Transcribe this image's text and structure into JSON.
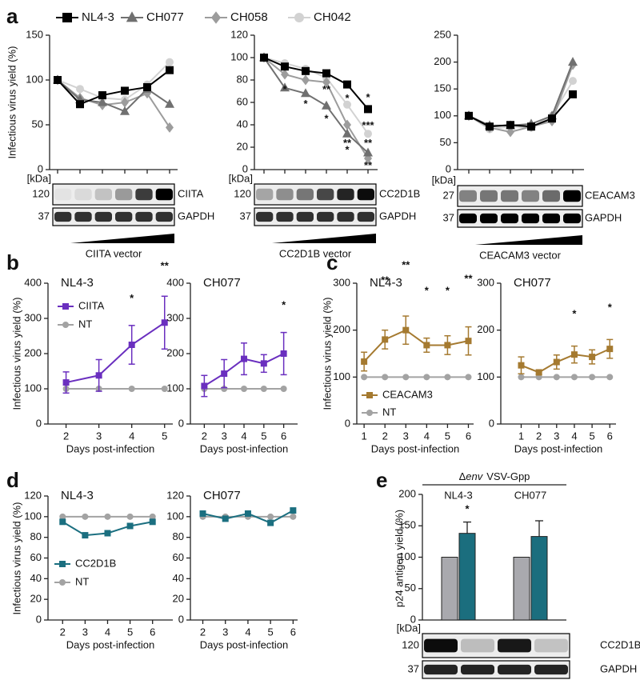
{
  "panels": [
    "a",
    "b",
    "c",
    "d",
    "e"
  ],
  "chart_data": [
    {
      "type": "line",
      "y_label": "Infectious virus yield (%)",
      "categories": [
        null,
        null,
        null,
        null,
        null,
        null
      ],
      "series": [
        {
          "name": "NL4-3",
          "color": "#000000",
          "marker": "square",
          "values": [
            100,
            73,
            83,
            88,
            92,
            111
          ]
        },
        {
          "name": "CH077",
          "color": "#707070",
          "marker": "triangle",
          "values": [
            100,
            78,
            75,
            65,
            90,
            73
          ]
        },
        {
          "name": "CH058",
          "color": "#9c9c9c",
          "marker": "diamond",
          "values": [
            100,
            80,
            72,
            75,
            85,
            47
          ]
        },
        {
          "name": "CH042",
          "color": "#d2d2d2",
          "marker": "circle",
          "values": [
            100,
            90,
            80,
            78,
            95,
            120
          ]
        }
      ],
      "ylim": [
        0,
        150
      ],
      "yticks": [
        0,
        50,
        100,
        150
      ],
      "legend": "top",
      "blot": {
        "unit": "[kDa]",
        "rows": [
          {
            "size": 120,
            "label": "CIITA"
          },
          {
            "size": 37,
            "label": "GAPDH"
          }
        ],
        "vector": "CIITA vector"
      }
    },
    {
      "type": "line",
      "categories": [
        null,
        null,
        null,
        null,
        null,
        null
      ],
      "series": [
        {
          "color": "#000000",
          "marker": "square",
          "values": [
            100,
            92,
            88,
            86,
            76,
            54
          ]
        },
        {
          "color": "#707070",
          "marker": "triangle",
          "values": [
            100,
            73,
            68,
            57,
            32,
            15
          ]
        },
        {
          "color": "#9c9c9c",
          "marker": "diamond",
          "values": [
            100,
            85,
            80,
            78,
            40,
            10
          ]
        },
        {
          "color": "#d2d2d2",
          "marker": "circle",
          "values": [
            100,
            95,
            90,
            82,
            58,
            32
          ]
        }
      ],
      "ylim": [
        0,
        120
      ],
      "yticks": [
        0,
        20,
        40,
        60,
        80,
        100,
        120
      ],
      "annotations": [
        {
          "text": "*",
          "x": 1,
          "y": 71
        },
        {
          "text": "*",
          "x": 2,
          "y": 58
        },
        {
          "text": "**",
          "x": 3,
          "y": 71
        },
        {
          "text": "*",
          "x": 3,
          "y": 45
        },
        {
          "text": "*",
          "x": 4,
          "y": 63
        },
        {
          "text": "**",
          "x": 4,
          "y": 23
        },
        {
          "text": "*",
          "x": 4,
          "y": 17
        },
        {
          "text": "*",
          "x": 5,
          "y": 64
        },
        {
          "text": "***",
          "x": 5,
          "y": 39
        },
        {
          "text": "**",
          "x": 5,
          "y": 23
        },
        {
          "text": "**",
          "x": 5,
          "y": 3
        }
      ],
      "blot": {
        "unit": "[kDa]",
        "rows": [
          {
            "size": 120,
            "label": "CC2D1B"
          },
          {
            "size": 37,
            "label": "GAPDH"
          }
        ],
        "vector": "CC2D1B vector"
      }
    },
    {
      "type": "line",
      "categories": [
        null,
        null,
        null,
        null,
        null,
        null
      ],
      "series": [
        {
          "color": "#000000",
          "marker": "square",
          "values": [
            100,
            80,
            83,
            80,
            95,
            140
          ]
        },
        {
          "color": "#707070",
          "marker": "triangle",
          "values": [
            100,
            82,
            82,
            85,
            100,
            200
          ]
        },
        {
          "color": "#9c9c9c",
          "marker": "diamond",
          "values": [
            100,
            78,
            70,
            80,
            90,
            195
          ]
        },
        {
          "color": "#d2d2d2",
          "marker": "circle",
          "values": [
            100,
            75,
            80,
            78,
            100,
            165
          ]
        }
      ],
      "ylim": [
        0,
        250
      ],
      "yticks": [
        0,
        50,
        100,
        150,
        200,
        250
      ],
      "blot": {
        "unit": "[kDa]",
        "rows": [
          {
            "size": 27,
            "label": "CEACAM3"
          },
          {
            "size": 37,
            "label": "GAPDH"
          }
        ],
        "vector": "CEACAM3 vector"
      }
    },
    {
      "type": "line",
      "title": "NL4-3",
      "y_label": "Infectious virus yield (%)",
      "x_label": "Days post-infection",
      "x": [
        2,
        3,
        4,
        5
      ],
      "xlim": [
        1.45,
        5.25
      ],
      "ylim": [
        0,
        400
      ],
      "yticks": [
        0,
        100,
        200,
        300,
        400
      ],
      "series": [
        {
          "name": "CIITA",
          "color": "#6a2fbf",
          "marker": "square",
          "values": [
            118,
            138,
            225,
            288
          ],
          "errors": [
            30,
            45,
            55,
            75
          ]
        },
        {
          "name": "NT",
          "color": "#a3a3a3",
          "marker": "circle",
          "values": [
            100,
            100,
            100,
            100
          ]
        }
      ],
      "legend": "upper left",
      "annotations": [
        {
          "text": "*",
          "x": 4,
          "y": 355
        },
        {
          "text": "**",
          "x": 5,
          "y": 448
        }
      ]
    },
    {
      "type": "line",
      "title": "CH077",
      "x_label": "Days post-infection",
      "x": [
        2,
        3,
        4,
        5,
        6
      ],
      "xlim": [
        1.3,
        6.7
      ],
      "ylim": [
        0,
        400
      ],
      "yticks": [
        0,
        100,
        200,
        300,
        400
      ],
      "series": [
        {
          "color": "#6a2fbf",
          "marker": "square",
          "values": [
            108,
            143,
            185,
            172,
            200
          ],
          "errors": [
            30,
            40,
            45,
            25,
            60
          ]
        },
        {
          "color": "#a3a3a3",
          "marker": "circle",
          "values": [
            100,
            100,
            100,
            100,
            100
          ]
        }
      ],
      "annotations": [
        {
          "text": "*",
          "x": 6,
          "y": 336
        }
      ]
    },
    {
      "type": "line",
      "title": "NL4-3",
      "y_label": "Infectious virus yield (%)",
      "x_label": "Days post-infection",
      "x": [
        1,
        2,
        3,
        4,
        5,
        6
      ],
      "xlim": [
        0.65,
        6.25
      ],
      "ylim": [
        0,
        300
      ],
      "yticks": [
        0,
        100,
        200,
        300
      ],
      "series": [
        {
          "name": "CEACAM3",
          "color": "#a57a30",
          "marker": "square",
          "values": [
            133,
            180,
            200,
            168,
            168,
            177
          ],
          "errors": [
            20,
            20,
            30,
            15,
            20,
            30
          ]
        },
        {
          "name": "NT",
          "color": "#a3a3a3",
          "marker": "circle",
          "values": [
            100,
            100,
            100,
            100,
            100,
            100
          ]
        }
      ],
      "legend": "lower left",
      "annotations": [
        {
          "text": "**",
          "x": 2,
          "y": 305
        },
        {
          "text": "**",
          "x": 3,
          "y": 337
        },
        {
          "text": "*",
          "x": 4,
          "y": 283
        },
        {
          "text": "*",
          "x": 5,
          "y": 283
        },
        {
          "text": "**",
          "x": 6,
          "y": 308
        }
      ]
    },
    {
      "type": "line",
      "title": "CH077",
      "x_label": "Days post-infection",
      "x": [
        1,
        2,
        3,
        4,
        5,
        6
      ],
      "xlim": [
        -0.15,
        6.35
      ],
      "ylim": [
        0,
        300
      ],
      "yticks": [
        0,
        100,
        200,
        300
      ],
      "series": [
        {
          "color": "#a57a30",
          "marker": "square",
          "values": [
            125,
            110,
            132,
            148,
            143,
            160
          ],
          "errors": [
            18,
            5,
            15,
            18,
            15,
            20
          ]
        },
        {
          "color": "#a3a3a3",
          "marker": "circle",
          "values": [
            100,
            100,
            100,
            100,
            100,
            100
          ]
        }
      ],
      "annotations": [
        {
          "text": "*",
          "x": 4,
          "y": 233
        },
        {
          "text": "*",
          "x": 6,
          "y": 247
        }
      ]
    },
    {
      "type": "line",
      "title": "NL4-3",
      "y_label": "Infectious virus yield (%)",
      "x_label": "Days post-infection",
      "x": [
        2,
        3,
        4,
        5,
        6
      ],
      "xlim": [
        1.35,
        6.9
      ],
      "ylim": [
        0,
        120
      ],
      "yticks": [
        0,
        20,
        40,
        60,
        80,
        100,
        120
      ],
      "series": [
        {
          "name": "CC2D1B",
          "color": "#1b6f80",
          "marker": "square",
          "values": [
            95,
            82,
            84,
            91,
            95
          ]
        },
        {
          "name": "NT",
          "color": "#a3a3a3",
          "marker": "circle",
          "values": [
            100,
            100,
            100,
            100,
            100
          ]
        }
      ],
      "legend": "lower left"
    },
    {
      "type": "line",
      "title": "CH077",
      "x_label": "Days post-infection",
      "x": [
        2,
        3,
        4,
        5,
        6
      ],
      "xlim": [
        1.45,
        6.2
      ],
      "ylim": [
        0,
        120
      ],
      "yticks": [
        0,
        20,
        40,
        60,
        80,
        100,
        120
      ],
      "series": [
        {
          "color": "#1b6f80",
          "marker": "square",
          "values": [
            103,
            98,
            103,
            94,
            106
          ]
        },
        {
          "color": "#a3a3a3",
          "marker": "circle",
          "values": [
            100,
            100,
            100,
            100,
            100
          ]
        }
      ]
    },
    {
      "type": "bar",
      "header": {
        "delta": "Δ",
        "italic": "env",
        "rest": "VSV-Gpp"
      },
      "y_label": "p24 antigen yield (%)",
      "categories": [
        "NL4-3",
        "CH077"
      ],
      "series": [
        {
          "color": "#a9a9ae",
          "values": [
            100,
            100
          ]
        },
        {
          "color": "#1b6e7e",
          "values": [
            138,
            133
          ],
          "errors": [
            18,
            25
          ]
        }
      ],
      "ylim": [
        0,
        200
      ],
      "yticks": [
        0,
        50,
        100,
        150,
        200
      ],
      "annotations": [
        {
          "text": "*",
          "x": 0,
          "y": 176
        }
      ],
      "blot": {
        "unit": "[kDa]",
        "rows": [
          {
            "size": 120,
            "label": "CC2D1B"
          },
          {
            "size": 37,
            "label": "GAPDH"
          }
        ]
      }
    }
  ]
}
